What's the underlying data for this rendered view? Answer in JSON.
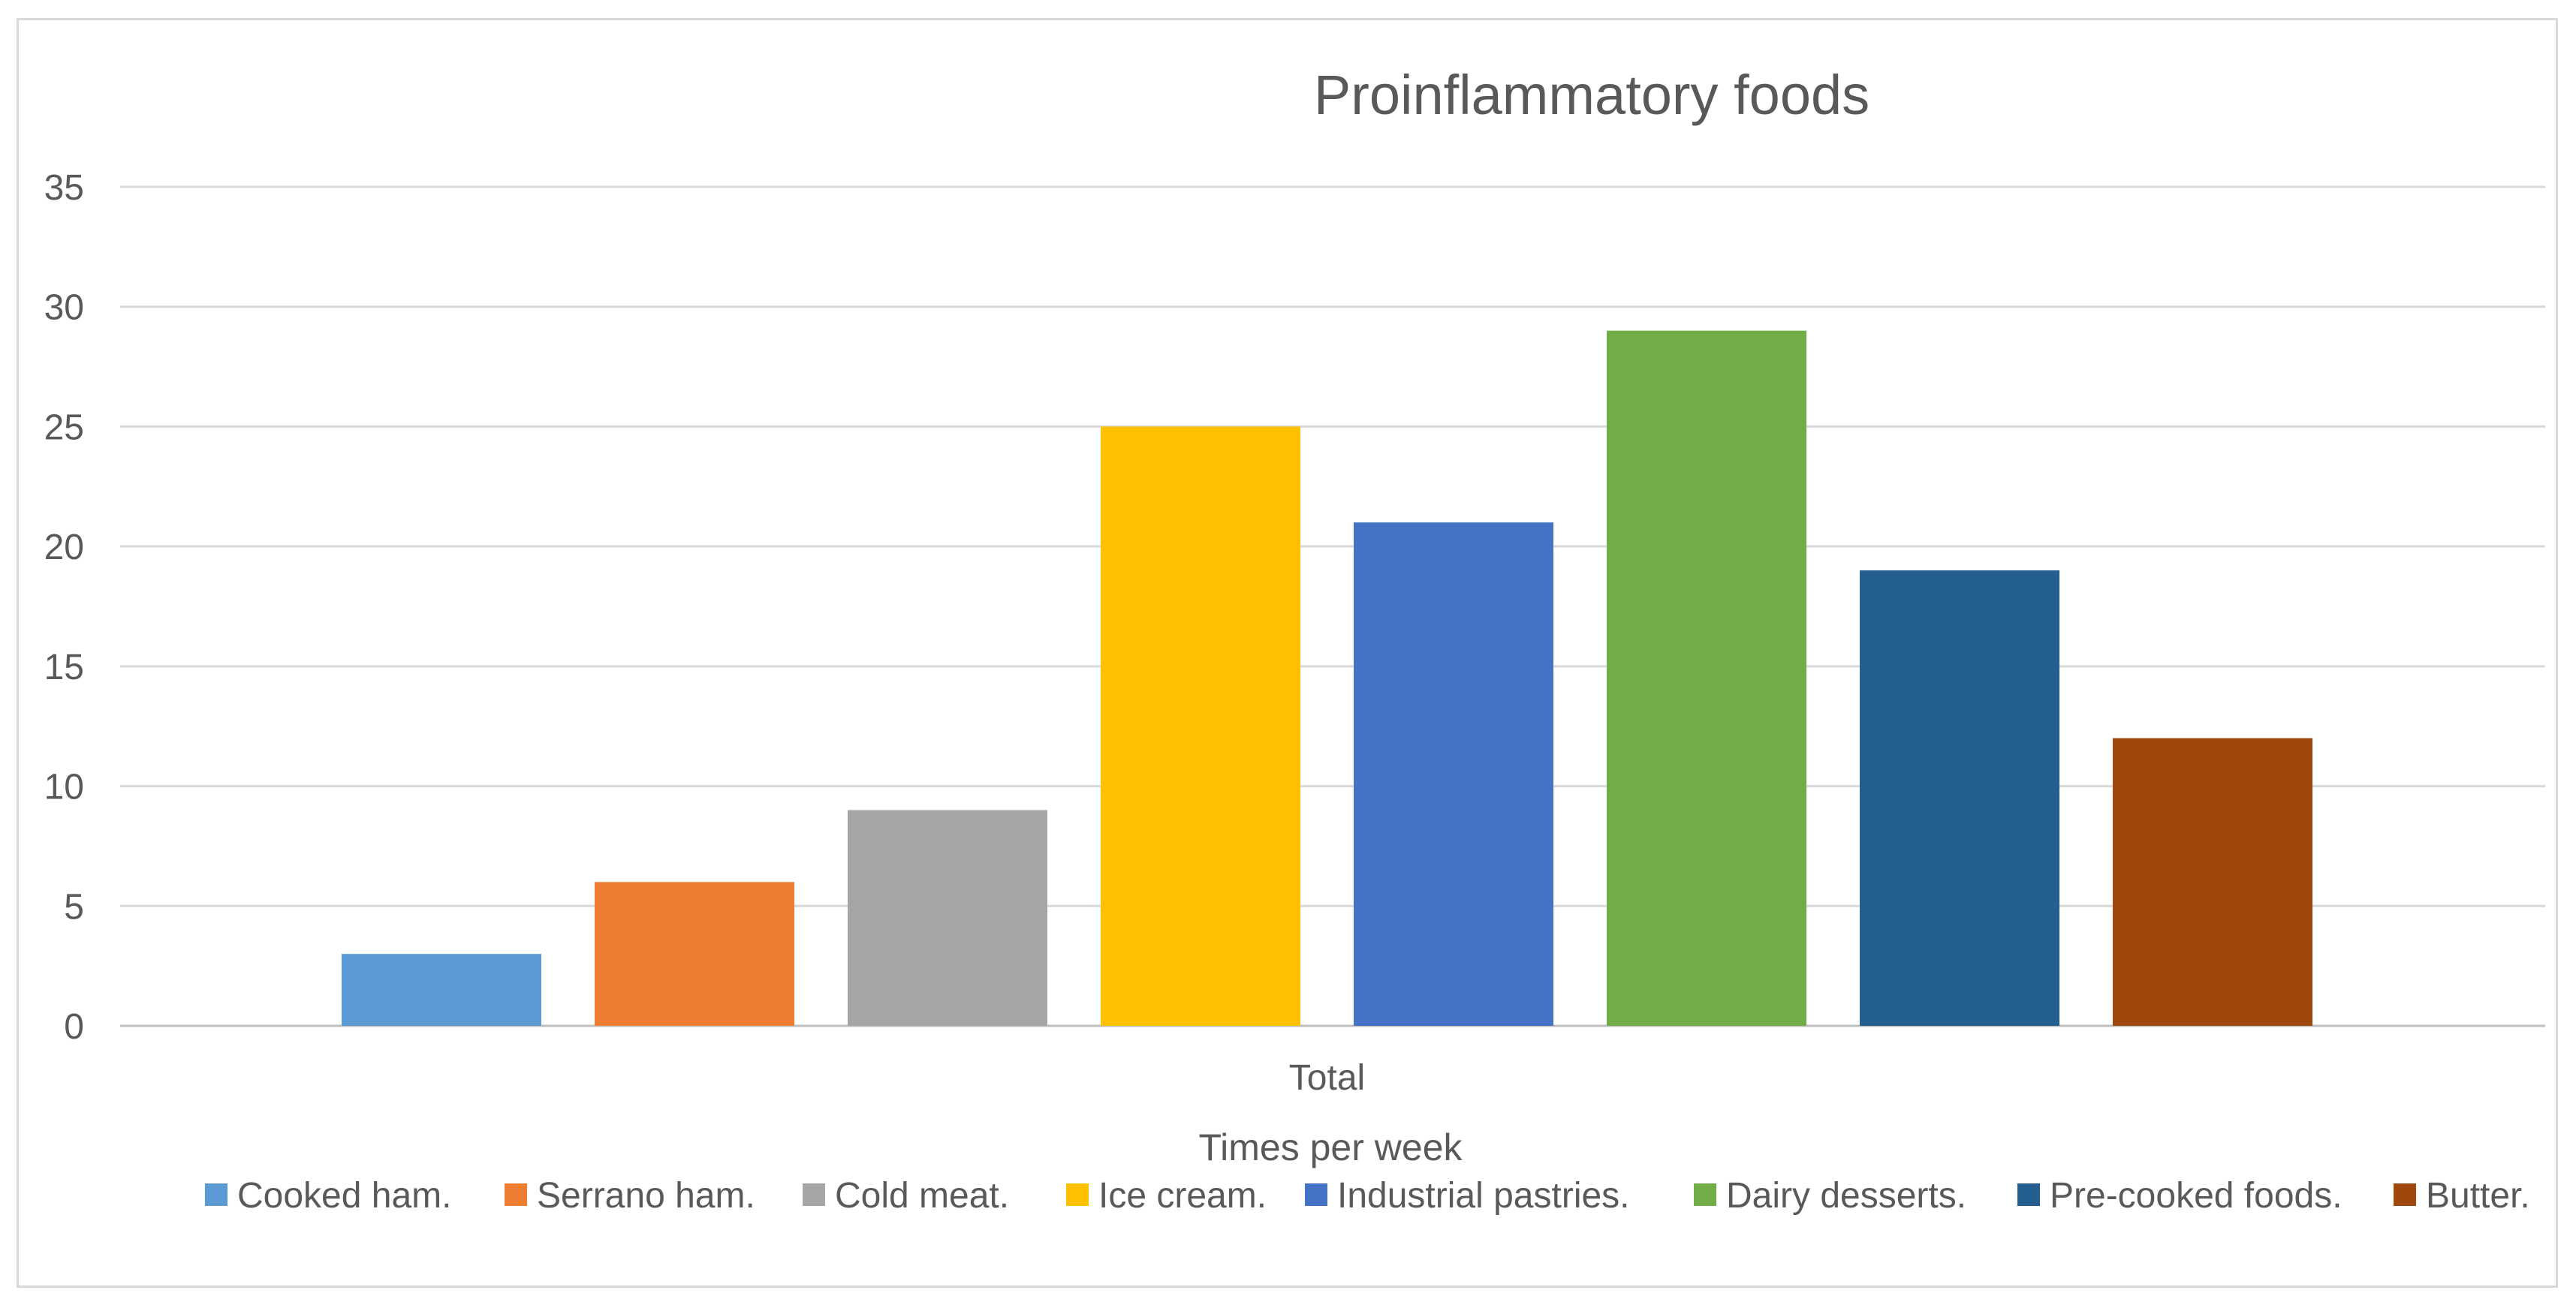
{
  "chart_data": {
    "type": "bar",
    "title": "Proinflammatory foods",
    "xlabel": "Times per week",
    "ylabel": "",
    "categories": [
      "Total"
    ],
    "ylim": [
      0,
      35
    ],
    "yticks": [
      0,
      5,
      10,
      15,
      20,
      25,
      30,
      35
    ],
    "grid": true,
    "legend_position": "bottom",
    "series": [
      {
        "name": "Cooked ham.",
        "values": [
          3
        ],
        "color": "#5b9bd5"
      },
      {
        "name": "Serrano ham.",
        "values": [
          6
        ],
        "color": "#ed7d31"
      },
      {
        "name": "Cold meat.",
        "values": [
          9
        ],
        "color": "#a5a5a5"
      },
      {
        "name": "Ice cream.",
        "values": [
          25
        ],
        "color": "#ffc000"
      },
      {
        "name": "Industrial pastries.",
        "values": [
          21
        ],
        "color": "#4472c4"
      },
      {
        "name": "Dairy desserts.",
        "values": [
          29
        ],
        "color": "#70ad47"
      },
      {
        "name": "Pre-cooked foods.",
        "values": [
          19
        ],
        "color": "#255e91"
      },
      {
        "name": "Butter.",
        "values": [
          12
        ],
        "color": "#9e480e"
      }
    ]
  }
}
